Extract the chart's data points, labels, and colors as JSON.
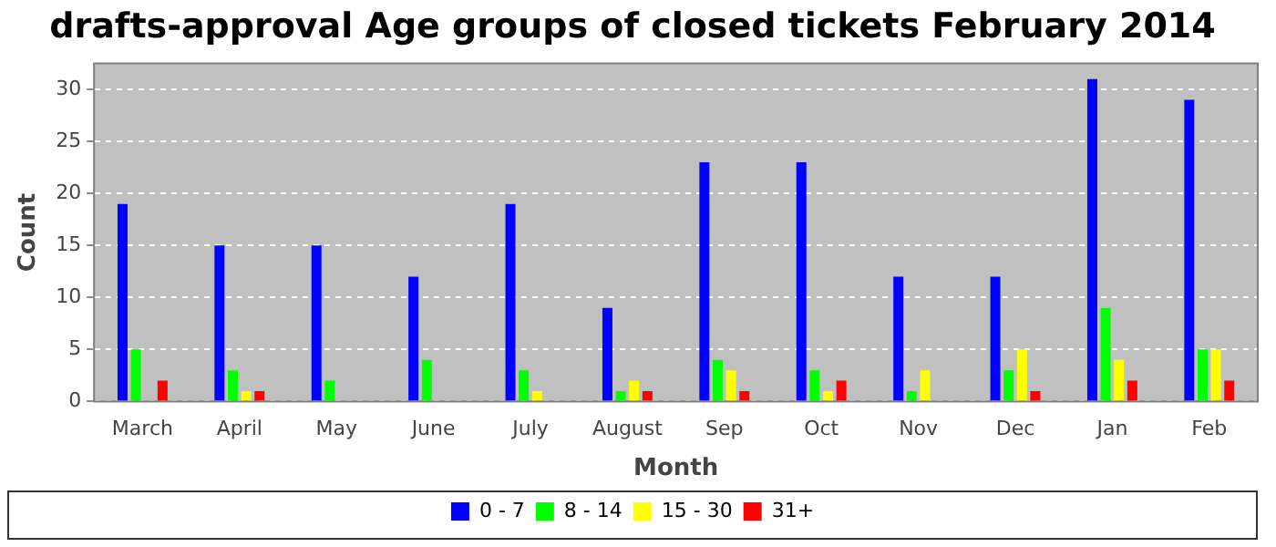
{
  "chart_data": {
    "type": "bar",
    "title": "drafts-approval Age groups of closed tickets February 2014",
    "xlabel": "Month",
    "ylabel": "Count",
    "categories": [
      "March",
      "April",
      "May",
      "June",
      "July",
      "August",
      "Sep",
      "Oct",
      "Nov",
      "Dec",
      "Jan",
      "Feb"
    ],
    "series": [
      {
        "name": "0 - 7",
        "color": "#0000ff",
        "values": [
          19,
          15,
          15,
          12,
          19,
          9,
          23,
          23,
          12,
          12,
          31,
          29
        ]
      },
      {
        "name": "8 - 14",
        "color": "#00ff00",
        "values": [
          5,
          3,
          2,
          4,
          3,
          1,
          4,
          3,
          1,
          3,
          9,
          5
        ]
      },
      {
        "name": "15 - 30",
        "color": "#ffff00",
        "values": [
          0,
          1,
          0,
          0,
          1,
          2,
          3,
          1,
          3,
          5,
          4,
          5
        ]
      },
      {
        "name": "31+",
        "color": "#ff0000",
        "values": [
          2,
          1,
          0,
          0,
          0,
          1,
          1,
          2,
          0,
          1,
          2,
          2
        ]
      }
    ],
    "ylim": [
      0,
      32.5
    ],
    "yticks": [
      0,
      5,
      10,
      15,
      20,
      25,
      30
    ],
    "grid": "y",
    "legend": "bottom"
  }
}
